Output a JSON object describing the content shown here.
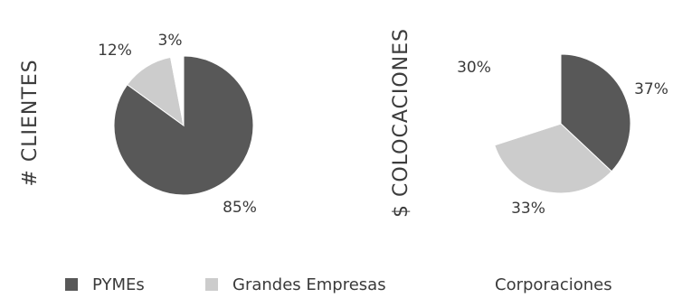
{
  "chart_data": [
    {
      "type": "pie",
      "ylabel": "# CLIENTES",
      "categories": [
        "PYMEs",
        "Grandes Empresas",
        "Corporaciones"
      ],
      "values": [
        85,
        12,
        3
      ],
      "labels": [
        "85%",
        "12%",
        "3%"
      ]
    },
    {
      "type": "pie",
      "ylabel": "$ COLOCACIONES",
      "categories": [
        "PYMEs",
        "Grandes Empresas",
        "Corporaciones"
      ],
      "values": [
        37,
        33,
        30
      ],
      "labels": [
        "37%",
        "33%",
        "30%"
      ]
    }
  ],
  "legend": {
    "placement": "bottom",
    "items": [
      {
        "label": "PYMEs",
        "color": "#585858"
      },
      {
        "label": "Grandes Empresas",
        "color": "#cccccc"
      },
      {
        "label": "Corporaciones",
        "color": "#ffffff"
      }
    ]
  }
}
